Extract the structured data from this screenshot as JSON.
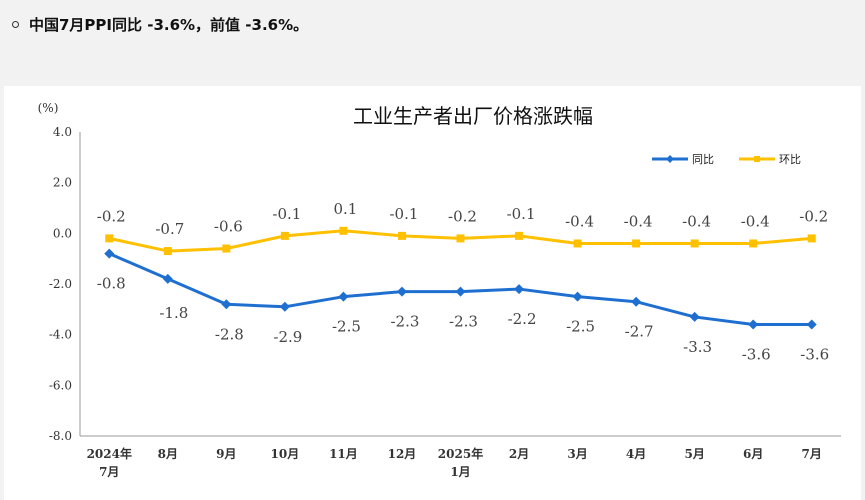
{
  "headline": "中国7月PPI同比 -3.6%，前值 -3.6%。",
  "chart_data": {
    "type": "line",
    "title": "工业生产者出厂价格涨跌幅",
    "unit": "(%)",
    "categories": [
      [
        "2024年",
        "7月"
      ],
      [
        "8月"
      ],
      [
        "9月"
      ],
      [
        "10月"
      ],
      [
        "11月"
      ],
      [
        "12月"
      ],
      [
        "2025年",
        "1月"
      ],
      [
        "2月"
      ],
      [
        "3月"
      ],
      [
        "4月"
      ],
      [
        "5月"
      ],
      [
        "6月"
      ],
      [
        "7月"
      ]
    ],
    "ylim": [
      -8.0,
      4.0
    ],
    "yticks": [
      "4.0",
      "2.0",
      "0.0",
      "-2.0",
      "-4.0",
      "-6.0",
      "-8.0"
    ],
    "ytick_values": [
      4,
      2,
      0,
      -2,
      -4,
      -6,
      -8
    ],
    "grid": false,
    "legend_position": "top-right",
    "series": [
      {
        "name": "同比",
        "color": "#1f6fd1",
        "marker": "diamond",
        "values": [
          -0.8,
          -1.8,
          -2.8,
          -2.9,
          -2.5,
          -2.3,
          -2.3,
          -2.2,
          -2.5,
          -2.7,
          -3.3,
          -3.6,
          -3.6
        ],
        "labels": [
          "-0.8",
          "-1.8",
          "-2.8",
          "-2.9",
          "-2.5",
          "-2.3",
          "-2.3",
          "-2.2",
          "-2.5",
          "-2.7",
          "-3.3",
          "-3.6",
          "-3.6"
        ]
      },
      {
        "name": "环比",
        "color": "#ffc000",
        "marker": "square",
        "values": [
          -0.2,
          -0.7,
          -0.6,
          -0.1,
          0.1,
          -0.1,
          -0.2,
          -0.1,
          -0.4,
          -0.4,
          -0.4,
          -0.4,
          -0.2
        ],
        "labels": [
          "-0.2",
          "-0.7",
          "-0.6",
          "-0.1",
          "0.1",
          "-0.1",
          "-0.2",
          "-0.1",
          "-0.4",
          "-0.4",
          "-0.4",
          "-0.4",
          "-0.2"
        ]
      }
    ]
  }
}
